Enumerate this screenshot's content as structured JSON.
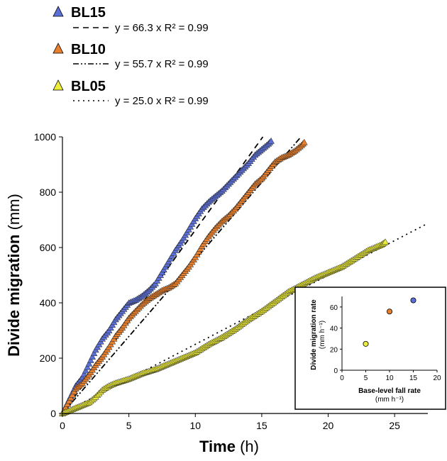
{
  "chart_data": [
    {
      "type": "scatter",
      "title": "",
      "xlabel": {
        "main": "Time",
        "unit": "(h)"
      },
      "ylabel": {
        "main": "Divide migration",
        "unit": "(mm)"
      },
      "xlim": [
        0,
        27.5
      ],
      "ylim": [
        0,
        1000
      ],
      "xticks": [
        "0",
        "5",
        "10",
        "15",
        "20",
        "25"
      ],
      "yticks": [
        "0",
        "200",
        "400",
        "600",
        "800",
        "1000"
      ],
      "legend_position": "top-left",
      "series": [
        {
          "name": "BL15",
          "color": "#5b6fd6",
          "fit_slope": 66.3,
          "fit_label": "y = 66.3 x  R² = 0.99",
          "fit_dash": "dashed",
          "points": [
            [
              0,
              0
            ],
            [
              1,
              100
            ],
            [
              1.5,
              130
            ],
            [
              2,
              180
            ],
            [
              2.5,
              230
            ],
            [
              3,
              270
            ],
            [
              3.5,
              300
            ],
            [
              4,
              340
            ],
            [
              4.5,
              370
            ],
            [
              5,
              400
            ],
            [
              5.5,
              410
            ],
            [
              6,
              425
            ],
            [
              6.5,
              445
            ],
            [
              7,
              470
            ],
            [
              7.5,
              510
            ],
            [
              8,
              550
            ],
            [
              8.5,
              590
            ],
            [
              9,
              625
            ],
            [
              9.5,
              665
            ],
            [
              10,
              705
            ],
            [
              10.5,
              740
            ],
            [
              11,
              765
            ],
            [
              11.5,
              785
            ],
            [
              12,
              805
            ],
            [
              12.5,
              830
            ],
            [
              13,
              855
            ],
            [
              13.5,
              880
            ],
            [
              14,
              905
            ],
            [
              14.5,
              935
            ],
            [
              15,
              955
            ],
            [
              15.5,
              975
            ],
            [
              15.7,
              985
            ]
          ]
        },
        {
          "name": "BL10",
          "color": "#e87f2c",
          "fit_slope": 55.7,
          "fit_label": "y = 55.7 x  R² = 0.99",
          "fit_dash": "dash-dot",
          "points": [
            [
              0,
              0
            ],
            [
              1,
              90
            ],
            [
              1.5,
              110
            ],
            [
              2,
              140
            ],
            [
              2.5,
              175
            ],
            [
              3,
              205
            ],
            [
              3.5,
              240
            ],
            [
              4,
              280
            ],
            [
              4.5,
              310
            ],
            [
              5,
              345
            ],
            [
              5.5,
              370
            ],
            [
              6,
              395
            ],
            [
              6.5,
              415
            ],
            [
              7,
              430
            ],
            [
              7.5,
              445
            ],
            [
              8,
              455
            ],
            [
              8.5,
              470
            ],
            [
              9,
              500
            ],
            [
              9.5,
              530
            ],
            [
              10,
              565
            ],
            [
              10.5,
              605
            ],
            [
              11,
              640
            ],
            [
              11.5,
              670
            ],
            [
              12,
              695
            ],
            [
              12.5,
              715
            ],
            [
              13,
              740
            ],
            [
              13.5,
              770
            ],
            [
              14,
              800
            ],
            [
              14.5,
              830
            ],
            [
              15,
              850
            ],
            [
              15.5,
              880
            ],
            [
              16,
              910
            ],
            [
              16.5,
              925
            ],
            [
              17,
              935
            ],
            [
              17.5,
              950
            ],
            [
              18,
              970
            ],
            [
              18.2,
              980
            ]
          ]
        },
        {
          "name": "BL05",
          "color": "#eded3a",
          "fit_slope": 25.0,
          "fit_label": "y = 25.0 x  R² = 0.99",
          "fit_dash": "dotted",
          "points": [
            [
              0,
              0
            ],
            [
              1,
              20
            ],
            [
              2,
              40
            ],
            [
              2.5,
              60
            ],
            [
              3,
              85
            ],
            [
              3.5,
              100
            ],
            [
              4,
              110
            ],
            [
              5,
              125
            ],
            [
              6,
              145
            ],
            [
              7,
              160
            ],
            [
              8,
              180
            ],
            [
              9,
              200
            ],
            [
              10,
              220
            ],
            [
              11,
              250
            ],
            [
              12,
              275
            ],
            [
              13,
              305
            ],
            [
              14,
              340
            ],
            [
              15,
              370
            ],
            [
              16,
              405
            ],
            [
              17,
              440
            ],
            [
              18,
              465
            ],
            [
              19,
              490
            ],
            [
              20,
              510
            ],
            [
              21,
              530
            ],
            [
              22,
              560
            ],
            [
              23,
              590
            ],
            [
              24,
              610
            ],
            [
              24.3,
              620
            ]
          ]
        }
      ]
    },
    {
      "type": "scatter",
      "title": "",
      "xlabel": {
        "main": "Base-level fall rate",
        "unit": "(mm h⁻¹)"
      },
      "ylabel": {
        "main": "Divide migration rate",
        "unit": "(mm h⁻¹)"
      },
      "xlim": [
        0,
        20
      ],
      "ylim": [
        0,
        70
      ],
      "xticks": [
        "0",
        "5",
        "10",
        "15",
        "20"
      ],
      "yticks": [
        "0",
        "20",
        "40",
        "60"
      ],
      "points": [
        {
          "x": 5,
          "y": 25.0,
          "color": "#eded3a"
        },
        {
          "x": 10,
          "y": 55.7,
          "color": "#e87f2c"
        },
        {
          "x": 15,
          "y": 66.3,
          "color": "#5b6fd6"
        }
      ]
    }
  ]
}
